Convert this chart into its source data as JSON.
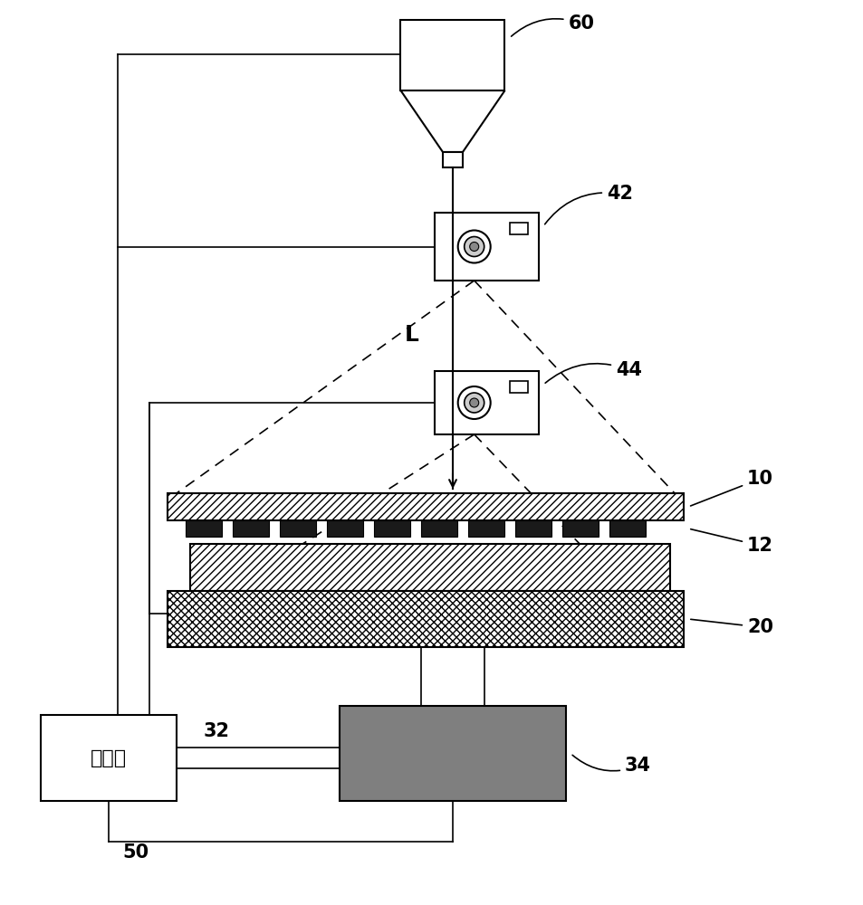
{
  "bg_color": "#ffffff",
  "line_color": "#000000",
  "label_60": "60",
  "label_42": "42",
  "label_44": "44",
  "label_L": "L",
  "label_10": "10",
  "label_12": "12",
  "label_20": "20",
  "label_32": "32",
  "label_34": "34",
  "label_50": "50",
  "controller_text": "控制器",
  "dark_gray": "#7f7f7f",
  "chip_color": "#1a1a1a"
}
